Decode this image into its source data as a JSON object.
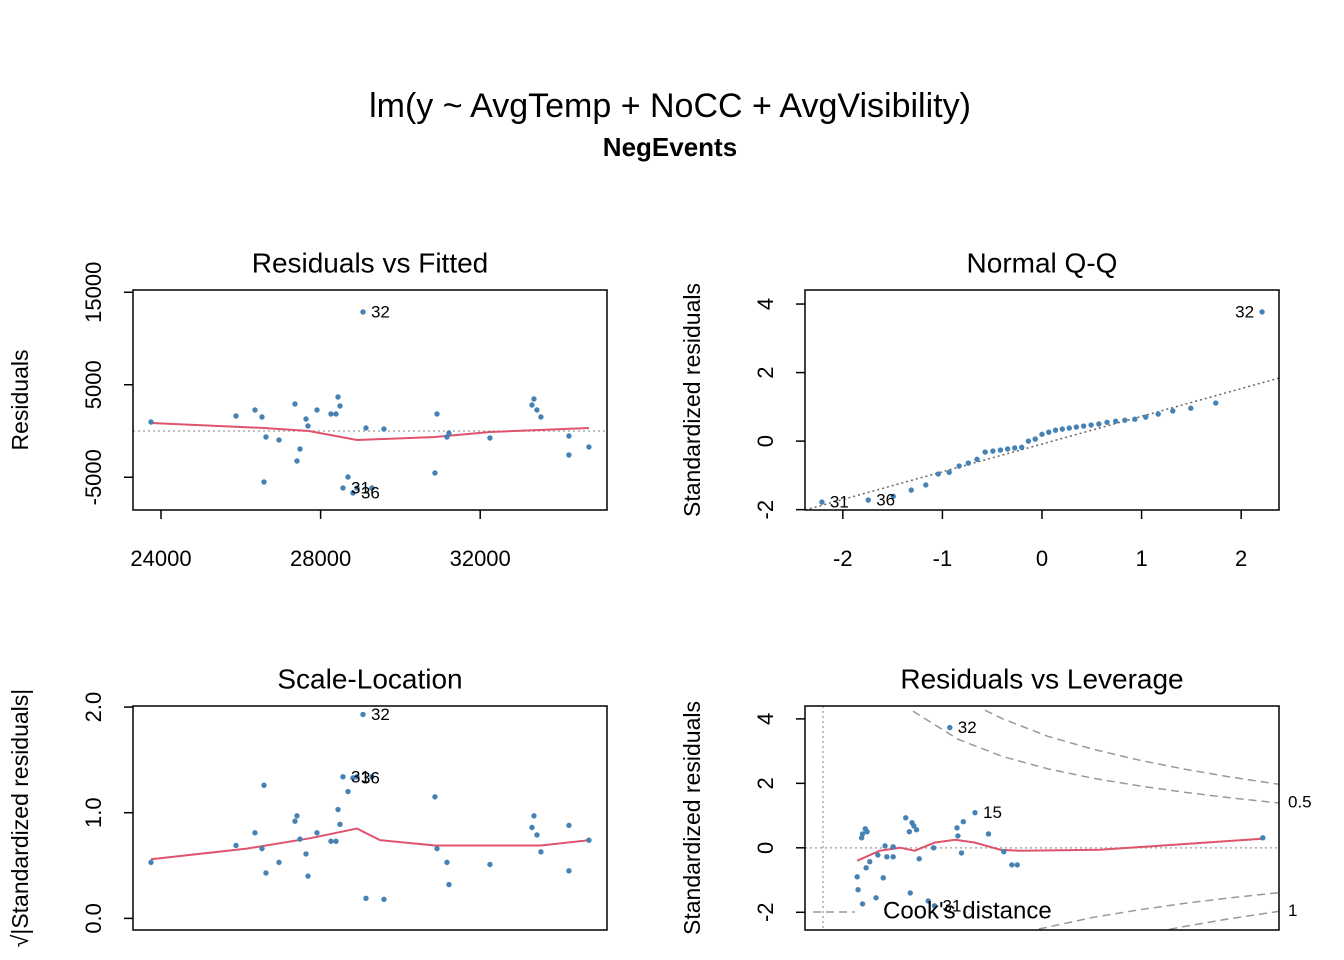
{
  "title": "lm(y ~ AvgTemp + NoCC + AvgVisibility)",
  "subtitle": "NegEvents",
  "chart_data": [
    {
      "type": "scatter",
      "title": "Residuals vs Fitted",
      "ylabel": "Residuals",
      "color": "#4682b4",
      "xlim": [
        23298,
        35178
      ],
      "ylim": [
        -8541,
        15243
      ],
      "xticks": [
        24000,
        28000,
        32000
      ],
      "yticks": [
        -5000,
        5000,
        15000
      ],
      "hline": 0,
      "x": [
        23749,
        25880,
        26356,
        26531,
        26581,
        26631,
        26957,
        27358,
        27408,
        27634,
        27684,
        27909,
        27483,
        28260,
        28386,
        28436,
        28486,
        28561,
        28686,
        28811,
        28912,
        29062,
        29137,
        29288,
        29588,
        30866,
        30917,
        31167,
        31217,
        32244,
        33297,
        33347,
        33422,
        33522,
        34224,
        34224,
        34725
      ],
      "y": [
        973,
        1622,
        2270,
        1513,
        -5513,
        -649,
        -973,
        2919,
        -3243,
        1297,
        541,
        2270,
        -1946,
        1838,
        1838,
        3675,
        2703,
        -6162,
        -4973,
        -6702,
        -6162,
        12864,
        324,
        -6162,
        216,
        -4540,
        1838,
        -649,
        -216,
        -757,
        2811,
        3459,
        2270,
        1513,
        -541,
        -2594,
        -1730
      ],
      "point_labels": [
        null,
        null,
        null,
        null,
        null,
        null,
        null,
        null,
        null,
        null,
        null,
        null,
        null,
        null,
        null,
        null,
        null,
        "31",
        null,
        "36",
        null,
        "32",
        null,
        null,
        null,
        null,
        null,
        null,
        null,
        null,
        null,
        null,
        null,
        null,
        null,
        null,
        null
      ],
      "smooth": {
        "color": "#df536b",
        "x": [
          23749,
          26581,
          27709,
          28912,
          30866,
          32244,
          34725
        ],
        "y": [
          865,
          324,
          0,
          -973,
          -649,
          -108,
          324
        ]
      }
    },
    {
      "type": "scatter",
      "title": "Normal Q-Q",
      "ylabel": "Standardized residuals",
      "color": "#4682b4",
      "xlim": [
        -2.38,
        2.38
      ],
      "ylim": [
        -2.01,
        4.41
      ],
      "xticks": [
        -2,
        -1,
        0,
        1,
        2
      ],
      "yticks": [
        -2,
        0,
        2,
        4
      ],
      "x": [
        -2.21,
        -1.745,
        -1.494,
        -1.313,
        -1.167,
        -1.042,
        -0.932,
        -0.832,
        -0.74,
        -0.653,
        -0.571,
        -0.493,
        -0.418,
        -0.345,
        -0.274,
        -0.204,
        -0.136,
        -0.068,
        0,
        0.068,
        0.136,
        0.204,
        0.274,
        0.345,
        0.418,
        0.493,
        0.571,
        0.653,
        0.74,
        0.832,
        0.932,
        1.042,
        1.167,
        1.313,
        1.494,
        1.745,
        2.21
      ],
      "y": [
        -1.78,
        -1.72,
        -1.61,
        -1.43,
        -1.28,
        -0.96,
        -0.91,
        -0.73,
        -0.64,
        -0.53,
        -0.32,
        -0.29,
        -0.26,
        -0.23,
        -0.2,
        -0.18,
        0,
        0.06,
        0.2,
        0.26,
        0.32,
        0.35,
        0.38,
        0.41,
        0.44,
        0.47,
        0.5,
        0.55,
        0.58,
        0.61,
        0.64,
        0.7,
        0.79,
        0.88,
        0.96,
        1.11,
        3.77
      ],
      "point_labels": [
        "31",
        "36",
        null,
        null,
        null,
        null,
        null,
        null,
        null,
        null,
        null,
        null,
        null,
        null,
        null,
        null,
        null,
        null,
        null,
        null,
        null,
        null,
        null,
        null,
        null,
        null,
        null,
        null,
        null,
        null,
        null,
        null,
        null,
        null,
        null,
        null,
        "32"
      ],
      "ref_line": {
        "x": [
          -2.38,
          2.38
        ],
        "y": [
          -2.01,
          1.84
        ]
      }
    },
    {
      "type": "scatter",
      "title": "Scale-Location",
      "ylabel": "√|Standardized residuals|",
      "color": "#4682b4",
      "xlim": [
        23298,
        35178
      ],
      "ylim": [
        -0.11,
        2.01
      ],
      "yticks": [
        {
          "value": 0,
          "label": "0.0"
        },
        {
          "value": 1,
          "label": "1.0"
        },
        {
          "value": 2,
          "label": "2.0"
        }
      ],
      "x": [
        23749,
        25880,
        26356,
        26531,
        26581,
        26631,
        26957,
        27358,
        27408,
        27634,
        27684,
        27909,
        27483,
        28260,
        28386,
        28436,
        28486,
        28561,
        28686,
        28811,
        28912,
        29062,
        29137,
        29288,
        29588,
        30866,
        30917,
        31167,
        31217,
        32244,
        33297,
        33347,
        33422,
        33522,
        34224,
        34224,
        34725
      ],
      "y": [
        0.53,
        0.69,
        0.81,
        0.66,
        1.26,
        0.43,
        0.53,
        0.92,
        0.97,
        0.61,
        0.4,
        0.81,
        0.75,
        0.73,
        0.73,
        1.03,
        0.89,
        1.34,
        1.2,
        1.33,
        1.34,
        1.93,
        0.19,
        1.34,
        0.18,
        1.15,
        0.66,
        0.53,
        0.32,
        0.51,
        0.86,
        0.97,
        0.79,
        0.63,
        0.45,
        0.88,
        0.74
      ],
      "point_labels": [
        null,
        null,
        null,
        null,
        null,
        null,
        null,
        null,
        null,
        null,
        null,
        null,
        null,
        null,
        null,
        null,
        null,
        "31",
        null,
        "36",
        null,
        "32",
        null,
        null,
        null,
        null,
        null,
        null,
        null,
        null,
        null,
        null,
        null,
        null,
        null,
        null,
        null
      ],
      "smooth": {
        "color": "#df536b",
        "x": [
          23749,
          26150,
          27760,
          28912,
          29490,
          30866,
          32244,
          33522,
          34725
        ],
        "y": [
          0.56,
          0.66,
          0.76,
          0.85,
          0.74,
          0.69,
          0.69,
          0.69,
          0.74
        ]
      }
    },
    {
      "type": "scatter",
      "title": "Residuals vs Leverage",
      "ylabel": "Standardized residuals",
      "color": "#4682b4",
      "xlim": [
        -0.02,
        0.507
      ],
      "ylim": [
        -2.55,
        4.4
      ],
      "yticks": [
        -2,
        0,
        2,
        4
      ],
      "hline": 0,
      "vline": 0,
      "x": [
        0.038,
        0.043,
        0.044,
        0.047,
        0.049,
        0.044,
        0.039,
        0.052,
        0.059,
        0.061,
        0.067,
        0.069,
        0.071,
        0.078,
        0.092,
        0.096,
        0.099,
        0.101,
        0.097,
        0.104,
        0.107,
        0.117,
        0.123,
        0.141,
        0.149,
        0.15,
        0.156,
        0.154,
        0.169,
        0.184,
        0.201,
        0.21,
        0.216,
        0.489,
        0.124,
        0.078,
        0.048
      ],
      "y": [
        -0.9,
        0.31,
        0.43,
        0.59,
        0.5,
        -1.74,
        -1.3,
        -0.43,
        -1.55,
        -0.22,
        -0.93,
        0.06,
        -0.28,
        0.03,
        0.93,
        0.5,
        0.78,
        0.68,
        -1.4,
        0.56,
        -0.34,
        -1.65,
        0,
        3.73,
        0.62,
        0.37,
        0.81,
        -0.16,
        1.09,
        0.43,
        -0.12,
        -0.53,
        -0.53,
        0.31,
        -1.8,
        -0.28,
        -0.62
      ],
      "point_labels": [
        null,
        null,
        null,
        null,
        null,
        null,
        null,
        null,
        null,
        null,
        null,
        null,
        null,
        null,
        null,
        null,
        null,
        null,
        null,
        null,
        null,
        null,
        null,
        "32",
        null,
        null,
        null,
        null,
        "15",
        null,
        null,
        null,
        null,
        null,
        "31",
        null,
        null
      ],
      "smooth": {
        "color": "#df536b",
        "x": [
          0.038,
          0.063,
          0.086,
          0.102,
          0.124,
          0.147,
          0.169,
          0.197,
          0.219,
          0.308,
          0.488
        ],
        "y": [
          -0.4,
          -0.09,
          0,
          -0.09,
          0.16,
          0.25,
          0.16,
          -0.06,
          -0.09,
          -0.06,
          0.28
        ]
      },
      "contour_color": "#999999",
      "contours": [
        {
          "label": "0.5",
          "x": [
            0.1,
            0.15,
            0.2,
            0.25,
            0.3,
            0.35,
            0.4,
            0.45,
            0.507
          ],
          "y": [
            4.24,
            3.37,
            2.83,
            2.45,
            2.16,
            1.93,
            1.73,
            1.56,
            1.39
          ]
        },
        {
          "x": [
            0.24,
            0.3,
            0.35,
            0.4,
            0.45,
            0.507
          ],
          "y": [
            -2.52,
            -2.16,
            -1.93,
            -1.73,
            -1.56,
            -1.39
          ]
        },
        {
          "x": [
            0.18,
            0.2,
            0.25,
            0.3,
            0.35,
            0.4,
            0.45,
            0.507
          ],
          "y": [
            4.27,
            4.0,
            3.46,
            3.06,
            2.73,
            2.45,
            2.21,
            1.97
          ]
        },
        {
          "label": "1",
          "x": [
            0.385,
            0.4,
            0.45,
            0.507
          ],
          "y": [
            -2.53,
            -2.45,
            -2.21,
            -1.97
          ]
        }
      ],
      "legend": {
        "label": "Cook's distance",
        "location": "bottomleft"
      }
    }
  ]
}
